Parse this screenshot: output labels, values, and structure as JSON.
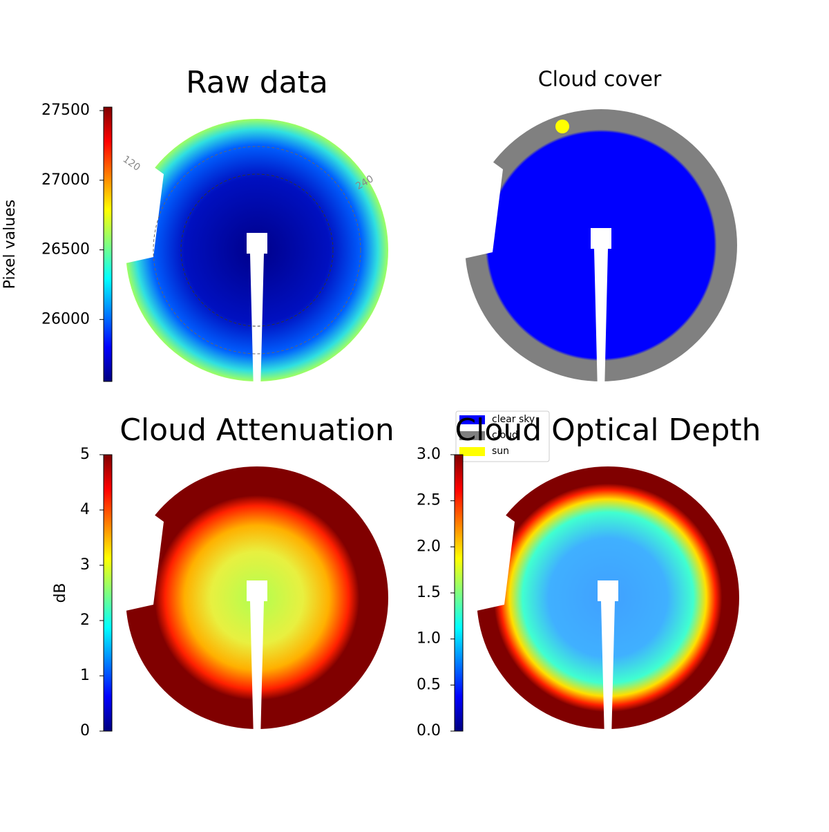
{
  "chart_data": [
    {
      "type": "image",
      "title": "Raw data",
      "colormap": "jet",
      "colorbar": {
        "label": "Pixel values",
        "lim": [
          25555,
          27525
        ],
        "ticks": [
          26000,
          26500,
          27000,
          27500
        ]
      },
      "annotations": [
        "120",
        "240"
      ]
    },
    {
      "type": "image",
      "title": "Cloud cover",
      "legend": [
        {
          "name": "clear sky",
          "color": "#0000ff"
        },
        {
          "name": "cloud",
          "color": "#808080"
        },
        {
          "name": "sun",
          "color": "#ffff00"
        }
      ]
    },
    {
      "type": "image",
      "title": "Cloud Attenuation",
      "colormap": "jet",
      "colorbar": {
        "label": "dB",
        "lim": [
          0,
          5
        ],
        "ticks": [
          0,
          1,
          2,
          3,
          4,
          5
        ]
      }
    },
    {
      "type": "image",
      "title": "Cloud Optical Depth",
      "colormap": "jet",
      "colorbar": {
        "lim": [
          0,
          3
        ],
        "ticks": [
          {
            "value": 0,
            "label": "0.0"
          },
          0.5,
          {
            "value": 1,
            "label": "1.0"
          },
          1.5,
          {
            "value": 2,
            "label": "2.0"
          },
          2.5,
          {
            "value": 3,
            "label": "3.0"
          }
        ]
      }
    }
  ]
}
